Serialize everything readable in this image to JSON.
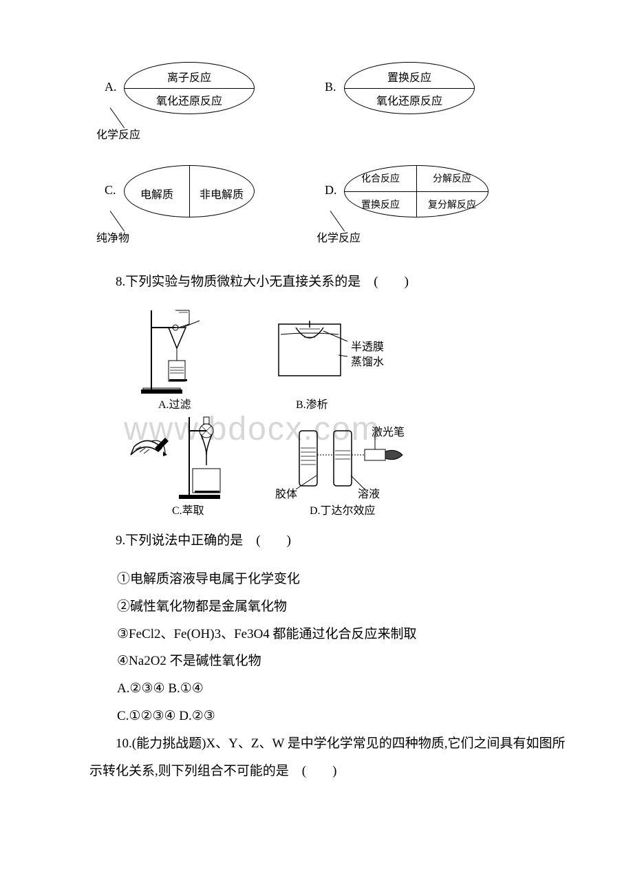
{
  "diagrams": {
    "row1": {
      "A": {
        "letter": "A.",
        "upper": "离子反应",
        "lower": "氧化还原反应",
        "stem": "化学反应"
      },
      "B": {
        "letter": "B.",
        "upper": "置换反应",
        "lower": "氧化还原反应",
        "stem": ""
      }
    },
    "row2": {
      "C": {
        "letter": "C.",
        "left": "电解质",
        "right": "非电解质",
        "stem": "纯净物"
      },
      "D": {
        "letter": "D.",
        "q1": "化合反应",
        "q2": "分解反应",
        "q3": "置换反应",
        "q4": "复分解反应",
        "stem": "化学反应"
      }
    }
  },
  "q8": {
    "text": "8.下列实验与物质微粒大小无直接关系的是　(　　)",
    "fig": {
      "A_caption": "A.过滤",
      "B_caption": "B.渗析",
      "C_caption": "C.萃取",
      "D_caption": "D.丁达尔效应",
      "B_label1": "半透膜",
      "B_label2": "蒸馏水",
      "D_label1": "激光笔",
      "D_label2": "胶体",
      "D_label3": "溶液"
    }
  },
  "q9": {
    "text": "9.下列说法中正确的是　(　　)",
    "items": [
      "①电解质溶液导电属于化学变化",
      "②碱性氧化物都是金属氧化物",
      "③FeCl2、Fe(OH)3、Fe3O4 都能通过化合反应来制取",
      "④Na2O2 不是碱性氧化物"
    ],
    "optA": "A.②③④ B.①④",
    "optC": "C.①②③④ D.②③"
  },
  "q10": {
    "text": "10.(能力挑战题)X、Y、Z、W 是中学化学常见的四种物质,它们之间具有如图所示转化关系,则下列组合不可能的是　(　　)"
  },
  "watermark_text": "www.bdocx.com",
  "colors": {
    "text": "#000000",
    "bg": "#ffffff",
    "watermark": "#d7d7d7",
    "line": "#000000"
  }
}
